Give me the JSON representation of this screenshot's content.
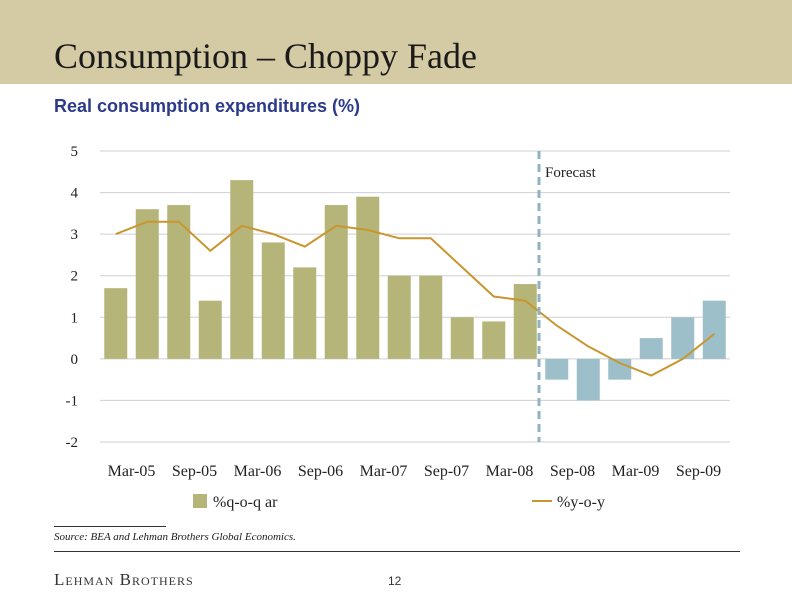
{
  "slide": {
    "title": "Consumption – Choppy Fade",
    "subtitle": "Real consumption expenditures (%)",
    "source": "Source: BEA and Lehman Brothers Global Economics.",
    "logo": "Lehman Brothers",
    "page_number": "12"
  },
  "chart_data": {
    "type": "bar",
    "title": "",
    "ylim": [
      -2,
      5
    ],
    "y_ticks": [
      "5",
      "4",
      "3",
      "2",
      "1",
      "0",
      "-1",
      "-2"
    ],
    "y_tick_values": [
      5,
      4,
      3,
      2,
      1,
      0,
      -1,
      -2
    ],
    "grid": true,
    "categories": [
      "Mar-05",
      "Jun-05",
      "Sep-05",
      "Dec-05",
      "Mar-06",
      "Jun-06",
      "Sep-06",
      "Dec-06",
      "Mar-07",
      "Jun-07",
      "Sep-07",
      "Dec-07",
      "Mar-08",
      "Jun-08",
      "Sep-08",
      "Dec-08",
      "Mar-09",
      "Jun-09",
      "Sep-09",
      "Dec-09"
    ],
    "x_tick_labels": [
      "Mar-05",
      "Sep-05",
      "Mar-06",
      "Sep-06",
      "Mar-07",
      "Sep-07",
      "Mar-08",
      "Sep-08",
      "Mar-09",
      "Sep-09"
    ],
    "forecast_label": "Forecast",
    "forecast_start_index": 14,
    "legend_position": "bottom",
    "series": [
      {
        "name": "%q-o-q ar",
        "kind": "bar",
        "color": "#b5b57a",
        "forecast_color": "#9dbfca",
        "values": [
          1.7,
          3.6,
          3.7,
          1.4,
          4.3,
          2.8,
          2.2,
          3.7,
          3.9,
          2.0,
          2.0,
          1.0,
          0.9,
          1.8,
          -0.5,
          -1.0,
          -0.5,
          0.5,
          1.0,
          1.4
        ]
      },
      {
        "name": "%y-o-y",
        "kind": "line",
        "color": "#c9952f",
        "values": [
          3.0,
          3.3,
          3.3,
          2.6,
          3.2,
          3.0,
          2.7,
          3.2,
          3.1,
          2.9,
          2.9,
          2.2,
          1.5,
          1.4,
          0.8,
          0.3,
          -0.1,
          -0.4,
          0.0,
          0.6
        ]
      }
    ]
  }
}
